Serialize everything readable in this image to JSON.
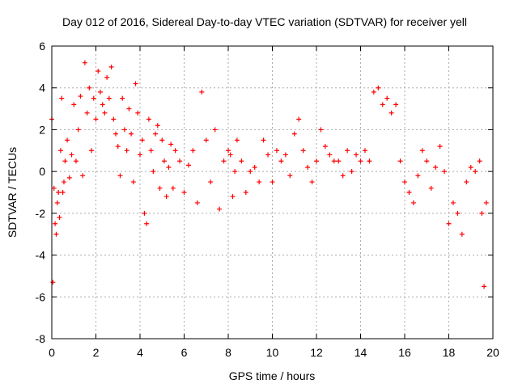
{
  "chart_data": {
    "type": "scatter",
    "title": "Day 012 of 2016, Sidereal Day-to-day VTEC variation (SDTVAR) for receiver yell",
    "xlabel": "GPS time / hours",
    "ylabel": "SDTVAR / TECUs",
    "xlim": [
      0,
      20
    ],
    "ylim": [
      -8,
      6
    ],
    "xticks": [
      0,
      2,
      4,
      6,
      8,
      10,
      12,
      14,
      16,
      18,
      20
    ],
    "yticks": [
      -8,
      -6,
      -4,
      -2,
      0,
      2,
      4,
      6
    ],
    "grid": true,
    "marker": "+",
    "series_color": "#ff0000",
    "series": [
      {
        "name": "SDTVAR",
        "x": [
          0.0,
          0.05,
          0.1,
          0.15,
          0.2,
          0.25,
          0.3,
          0.35,
          0.4,
          0.45,
          0.5,
          0.55,
          0.6,
          0.7,
          0.8,
          0.9,
          1.0,
          1.1,
          1.2,
          1.3,
          1.4,
          1.5,
          1.6,
          1.7,
          1.8,
          1.9,
          2.0,
          2.1,
          2.2,
          2.3,
          2.4,
          2.5,
          2.6,
          2.7,
          2.8,
          2.9,
          3.0,
          3.1,
          3.2,
          3.3,
          3.4,
          3.5,
          3.6,
          3.7,
          3.8,
          3.9,
          4.0,
          4.1,
          4.2,
          4.3,
          4.4,
          4.5,
          4.6,
          4.7,
          4.8,
          4.9,
          5.0,
          5.1,
          5.2,
          5.3,
          5.4,
          5.5,
          5.6,
          5.8,
          6.0,
          6.2,
          6.4,
          6.6,
          6.8,
          7.0,
          7.2,
          7.4,
          7.6,
          7.8,
          8.0,
          8.1,
          8.2,
          8.3,
          8.4,
          8.6,
          8.8,
          9.0,
          9.2,
          9.4,
          9.6,
          9.8,
          10.0,
          10.2,
          10.4,
          10.6,
          10.8,
          11.0,
          11.2,
          11.4,
          11.6,
          11.8,
          12.0,
          12.2,
          12.4,
          12.6,
          12.8,
          13.0,
          13.2,
          13.4,
          13.6,
          13.8,
          14.0,
          14.2,
          14.4,
          14.6,
          14.8,
          15.0,
          15.2,
          15.4,
          15.6,
          15.8,
          16.0,
          16.2,
          16.4,
          16.6,
          16.8,
          17.0,
          17.2,
          17.4,
          17.6,
          17.8,
          18.0,
          18.2,
          18.4,
          18.6,
          18.8,
          19.0,
          19.2,
          19.4,
          19.5,
          19.6,
          19.7
        ],
        "y": [
          2.5,
          -5.3,
          -0.8,
          -2.5,
          -3.0,
          -1.5,
          -1.0,
          -2.2,
          1.0,
          3.5,
          -1.0,
          -0.5,
          0.5,
          1.5,
          -0.3,
          0.8,
          3.2,
          0.5,
          2.0,
          3.6,
          -0.2,
          5.2,
          2.8,
          4.0,
          1.0,
          3.5,
          2.5,
          4.8,
          3.8,
          3.2,
          2.8,
          4.5,
          3.5,
          5.0,
          2.5,
          1.8,
          1.2,
          -0.2,
          3.5,
          2.0,
          1.0,
          3.0,
          1.8,
          -0.5,
          4.2,
          2.8,
          0.8,
          1.5,
          -2.0,
          -2.5,
          2.5,
          1.0,
          0.0,
          1.8,
          2.2,
          -0.8,
          1.5,
          0.5,
          -1.2,
          0.2,
          1.3,
          -0.8,
          1.0,
          0.5,
          -1.0,
          0.3,
          1.0,
          -1.5,
          3.8,
          1.5,
          -0.5,
          2.0,
          -1.8,
          0.5,
          1.0,
          0.8,
          -1.2,
          0.0,
          1.5,
          0.5,
          -1.0,
          0.0,
          0.2,
          -0.5,
          1.5,
          0.8,
          -0.5,
          1.0,
          0.5,
          0.8,
          -0.2,
          1.8,
          2.5,
          1.0,
          0.2,
          -0.5,
          0.5,
          2.0,
          1.2,
          0.8,
          0.5,
          0.5,
          -0.2,
          1.0,
          0.0,
          0.8,
          0.5,
          1.0,
          0.5,
          3.8,
          4.0,
          3.2,
          3.5,
          2.8,
          3.2,
          0.5,
          -0.5,
          -1.0,
          -1.5,
          -0.2,
          1.0,
          0.5,
          -0.8,
          0.2,
          1.2,
          0.0,
          -2.5,
          -1.5,
          -2.0,
          -3.0,
          -0.5,
          0.2,
          0.0,
          0.5,
          -2.0,
          -5.5,
          -1.5
        ]
      }
    ]
  }
}
